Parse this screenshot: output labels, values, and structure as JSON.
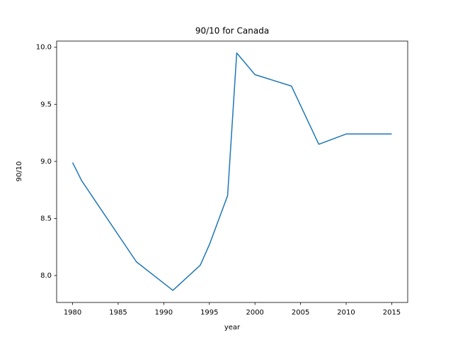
{
  "chart_data": {
    "type": "line",
    "title": "90/10 for Canada",
    "x_label": "year",
    "y_label": "90/10",
    "x": [
      1980,
      1981,
      1987,
      1991,
      1994,
      1995,
      1997,
      1998,
      2000,
      2004,
      2007,
      2010,
      2013,
      2015
    ],
    "series": [
      {
        "name": "90/10",
        "color": "#1f77b4",
        "values": [
          8.99,
          8.83,
          8.12,
          7.87,
          8.09,
          8.27,
          8.7,
          9.95,
          9.76,
          9.66,
          9.15,
          9.24,
          9.24,
          9.24
        ]
      }
    ],
    "xlim": [
      1978.25,
      2016.75
    ],
    "xticks": [
      1980,
      1985,
      1990,
      1995,
      2000,
      2005,
      2010,
      2015
    ],
    "ylim": [
      7.764,
      10.054
    ],
    "yticks": [
      {
        "value": 8,
        "label": "8.0"
      },
      {
        "value": 8.5,
        "label": "8.5"
      },
      {
        "value": 9,
        "label": "9.0"
      },
      {
        "value": 9.5,
        "label": "9.5"
      },
      {
        "value": 10,
        "label": "10.0"
      }
    ],
    "grid": false
  }
}
